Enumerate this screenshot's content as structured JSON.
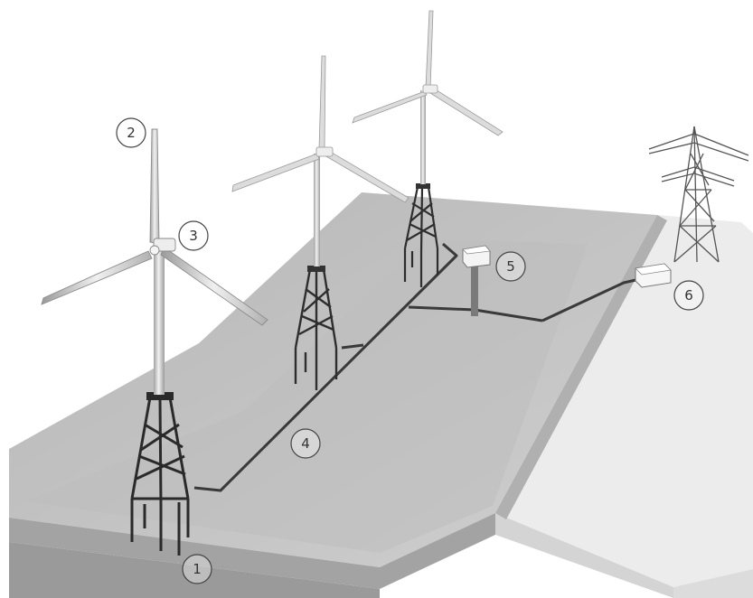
{
  "callouts": [
    {
      "id": "foundation",
      "label": "1"
    },
    {
      "id": "blade-tip",
      "label": "2"
    },
    {
      "id": "nacelle",
      "label": "3"
    },
    {
      "id": "array-cable",
      "label": "4"
    },
    {
      "id": "offshore-substation",
      "label": "5"
    },
    {
      "id": "onshore-substation",
      "label": "6"
    }
  ],
  "colors": {
    "sea_top": "#c2c2c2",
    "seabed_side": "#a9a9a9",
    "shore_top": "#ececec",
    "shore_side": "#d6d6d6",
    "structure": "#2e2e2e",
    "blade": "#d8d8d8",
    "cable": "#3a3a3a"
  }
}
